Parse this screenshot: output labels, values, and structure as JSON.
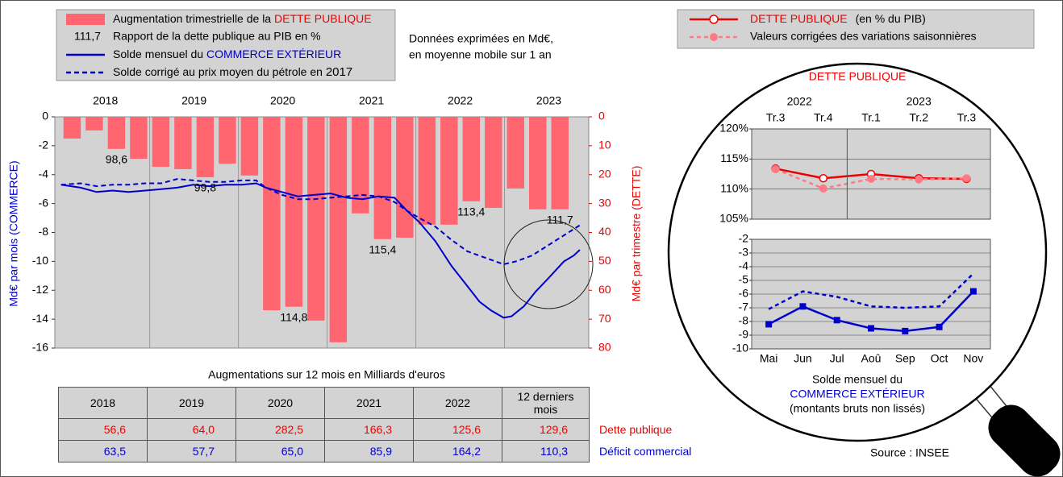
{
  "chart_data": [
    {
      "type": "bar",
      "years": [
        "2018",
        "2019",
        "2020",
        "2021",
        "2022",
        "2023"
      ],
      "xlim": [
        2017.93,
        2023.95
      ],
      "ylim": [
        -16,
        0
      ],
      "yticks": [
        0,
        -2,
        -4,
        -6,
        -8,
        -10,
        -12,
        -14,
        -16
      ],
      "y2lim": [
        0,
        80
      ],
      "y2ticks": [
        0,
        10,
        20,
        30,
        40,
        50,
        60,
        70,
        80
      ],
      "y2_inverted": true,
      "ylabel": "Md€ par mois (COMMERCE)",
      "y2label": "Md€ par trimestre (DETTE)",
      "grid": false,
      "legend": [
        {
          "text": "Augmentation trimestrielle de la ",
          "highlight": "DETTE PUBLIQUE"
        },
        {
          "key": "111,7",
          "text": "Rapport de la dette publique au PIB en %"
        },
        {
          "text": "Solde mensuel du ",
          "highlight": "COMMERCE EXTÉRIEUR"
        },
        {
          "text": "Solde corrigé au prix moyen du pétrole en ",
          "suffix": "2017"
        }
      ],
      "series": [
        {
          "type": "bar",
          "axis": "y2",
          "color": "#ff6670",
          "values": [
            7.5,
            4.7,
            11.1,
            14.5,
            17.3,
            18.1,
            20.9,
            16.2,
            20.3,
            66.9,
            65.7,
            70.5,
            78.0,
            33.4,
            42.3,
            41.8,
            37.3,
            37.3,
            29.2,
            31.5,
            24.8,
            32.0,
            32.0
          ],
          "ratio_labels": [
            null,
            null,
            "98,6",
            null,
            null,
            null,
            "99,8",
            null,
            null,
            null,
            "114,8",
            null,
            null,
            null,
            "115,4",
            null,
            null,
            null,
            "113,4",
            null,
            null,
            null,
            "111,7"
          ]
        },
        {
          "type": "line",
          "style": "solid",
          "color": "#0000cc",
          "x": [
            2018.0,
            2018.22,
            2018.4,
            2018.58,
            2018.76,
            2018.95,
            2019.13,
            2019.31,
            2019.49,
            2019.67,
            2019.85,
            2020.04,
            2020.2,
            2020.31,
            2020.49,
            2020.67,
            2020.85,
            2021.04,
            2021.22,
            2021.4,
            2021.58,
            2021.76,
            2021.9,
            2022.04,
            2022.22,
            2022.4,
            2022.58,
            2022.72,
            2022.85,
            2022.99,
            2023.08,
            2023.22,
            2023.35,
            2023.49,
            2023.67,
            2023.78,
            2023.85
          ],
          "values": [
            -4.7,
            -4.9,
            -5.2,
            -5.1,
            -5.2,
            -5.1,
            -5.0,
            -4.9,
            -4.7,
            -4.8,
            -4.7,
            -4.7,
            -4.6,
            -4.9,
            -5.2,
            -5.5,
            -5.4,
            -5.3,
            -5.6,
            -5.7,
            -5.5,
            -5.6,
            -6.5,
            -7.3,
            -8.6,
            -10.3,
            -11.7,
            -12.8,
            -13.4,
            -13.9,
            -13.8,
            -13.1,
            -12.1,
            -11.2,
            -10.0,
            -9.6,
            -9.2
          ]
        },
        {
          "type": "line",
          "style": "dashed",
          "color": "#0000cc",
          "x": [
            2018.0,
            2018.22,
            2018.4,
            2018.58,
            2018.76,
            2018.95,
            2019.13,
            2019.31,
            2019.49,
            2019.67,
            2019.85,
            2020.04,
            2020.2,
            2020.31,
            2020.49,
            2020.67,
            2020.85,
            2021.04,
            2021.22,
            2021.4,
            2021.58,
            2021.76,
            2021.9,
            2022.04,
            2022.22,
            2022.4,
            2022.58,
            2022.76,
            2022.99,
            2023.13,
            2023.31,
            2023.49,
            2023.67,
            2023.85
          ],
          "values": [
            -4.7,
            -4.6,
            -4.8,
            -4.7,
            -4.7,
            -4.6,
            -4.6,
            -4.3,
            -4.4,
            -4.5,
            -4.5,
            -4.4,
            -4.4,
            -4.9,
            -5.4,
            -5.7,
            -5.7,
            -5.6,
            -5.5,
            -5.4,
            -5.5,
            -5.9,
            -6.5,
            -7.0,
            -7.6,
            -8.5,
            -9.3,
            -9.7,
            -10.2,
            -10.0,
            -9.6,
            -8.9,
            -8.2,
            -7.5
          ]
        }
      ]
    },
    {
      "type": "line",
      "title": "DETTE PUBLIQUE",
      "year_groups": [
        {
          "label": "2022",
          "quarters": [
            "Tr.3",
            "Tr.4"
          ]
        },
        {
          "label": "2023",
          "quarters": [
            "Tr.1",
            "Tr.2",
            "Tr.3"
          ]
        }
      ],
      "ylim": [
        105,
        120
      ],
      "yticks": [
        {
          "value": 105,
          "label": "105%"
        },
        {
          "value": 110,
          "label": "110%"
        },
        {
          "value": 115,
          "label": "115%"
        },
        {
          "value": 120,
          "label": "120%"
        }
      ],
      "grid": true,
      "legend_title": "DETTE PUBLIQUE",
      "legend_unit": "(en % du PIB)",
      "series": [
        {
          "style": "solid",
          "marker": "open-circle",
          "color": "#ee0000",
          "values": [
            113.4,
            111.8,
            112.5,
            111.8,
            111.7
          ]
        },
        {
          "name": "Valeurs corrigées des variations saisonnières",
          "style": "dashed",
          "marker": "circle",
          "color": "#ff7a85",
          "values": [
            113.3,
            110.1,
            111.7,
            111.6,
            111.8
          ]
        }
      ]
    },
    {
      "type": "line",
      "categories": [
        "Mai",
        "Jun",
        "Jul",
        "Aoû",
        "Sep",
        "Oct",
        "Nov"
      ],
      "ylim": [
        -10,
        -2
      ],
      "yticks": [
        -2,
        -3,
        -4,
        -5,
        -6,
        -7,
        -8,
        -9,
        -10
      ],
      "grid": true,
      "caption": [
        "Solde mensuel du",
        "COMMERCE EXTÉRIEUR",
        "(montants bruts non lissés)"
      ],
      "series": [
        {
          "style": "solid",
          "marker": "square",
          "color": "#0000cc",
          "values": [
            -8.2,
            -6.9,
            -7.9,
            -8.5,
            -8.7,
            -8.4,
            -5.8
          ]
        },
        {
          "style": "dashed",
          "marker": "none",
          "color": "#0000cc",
          "values": [
            -7.1,
            -5.8,
            -6.2,
            -6.9,
            -7.0,
            -6.9,
            -4.5
          ]
        }
      ]
    }
  ],
  "note": [
    "Données exprimées en Md€,",
    "en moyenne mobile sur 1 an"
  ],
  "table": {
    "title": "Augmentations sur 12 mois en Milliards d'euros",
    "header": [
      "2018",
      "2019",
      "2020",
      "2021",
      "2022",
      "12 derniers mois"
    ],
    "rows": [
      {
        "label": "Dette publique",
        "color": "#ee0000",
        "cells": [
          "56,6",
          "64,0",
          "282,5",
          "166,3",
          "125,6",
          "129,6"
        ]
      },
      {
        "label": "Déficit commercial",
        "color": "#0000cc",
        "cells": [
          "63,5",
          "57,7",
          "65,0",
          "85,9",
          "164,2",
          "110,3"
        ]
      }
    ]
  },
  "source": "Source : INSEE"
}
